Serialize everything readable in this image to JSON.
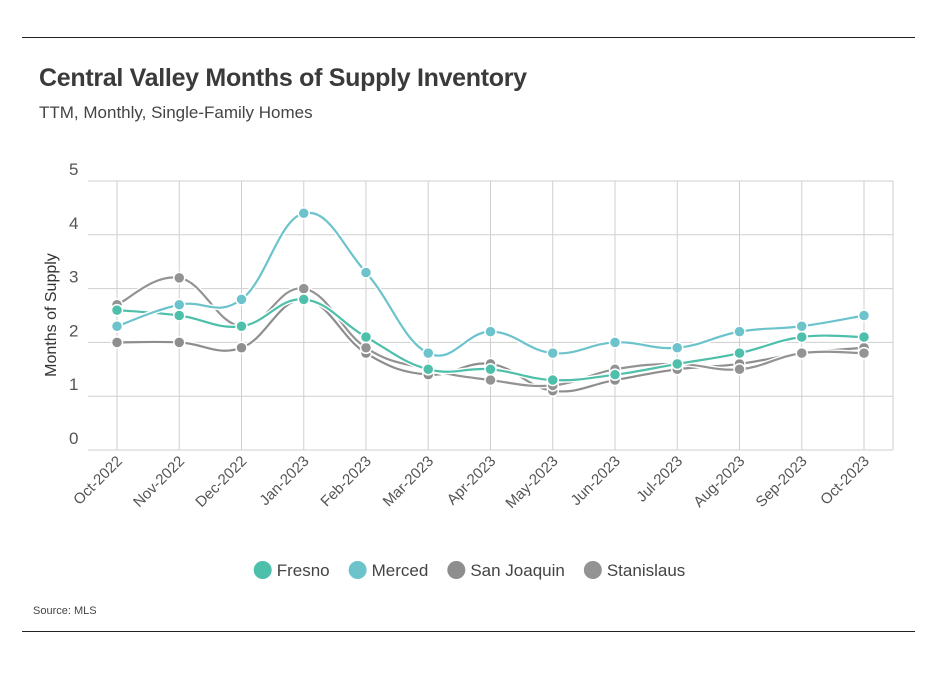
{
  "title": "Central Valley Months of Supply Inventory",
  "subtitle": "TTM, Monthly, Single-Family Homes",
  "source": "Source: MLS",
  "chart_data": {
    "type": "line",
    "ylabel": "Months of Supply",
    "xlabel": "",
    "ylim": [
      0,
      5
    ],
    "yticks": [
      0,
      1,
      2,
      3,
      4,
      5
    ],
    "grid": true,
    "legend_position": "bottom",
    "categories": [
      "Oct-2022",
      "Nov-2022",
      "Dec-2022",
      "Jan-2023",
      "Feb-2023",
      "Mar-2023",
      "Apr-2023",
      "May-2023",
      "Jun-2023",
      "Jul-2023",
      "Aug-2023",
      "Sep-2023",
      "Oct-2023"
    ],
    "series": [
      {
        "name": "Fresno",
        "color": "#4dbfaa",
        "values": [
          2.6,
          2.5,
          2.3,
          2.8,
          2.1,
          1.5,
          1.5,
          1.3,
          1.4,
          1.6,
          1.8,
          2.1,
          2.1
        ]
      },
      {
        "name": "Merced",
        "color": "#6cc3cc",
        "values": [
          2.3,
          2.7,
          2.8,
          4.4,
          3.3,
          1.8,
          2.2,
          1.8,
          2.0,
          1.9,
          2.2,
          2.3,
          2.5
        ]
      },
      {
        "name": "San Joaquin",
        "color": "#8e8e8e",
        "values": [
          2.0,
          2.0,
          1.9,
          2.8,
          1.8,
          1.4,
          1.6,
          1.1,
          1.3,
          1.5,
          1.6,
          1.8,
          1.9
        ]
      },
      {
        "name": "Stanislaus",
        "color": "#939393",
        "values": [
          2.7,
          3.2,
          2.3,
          3.0,
          1.9,
          1.5,
          1.3,
          1.2,
          1.5,
          1.6,
          1.5,
          1.8,
          1.8
        ]
      }
    ]
  }
}
